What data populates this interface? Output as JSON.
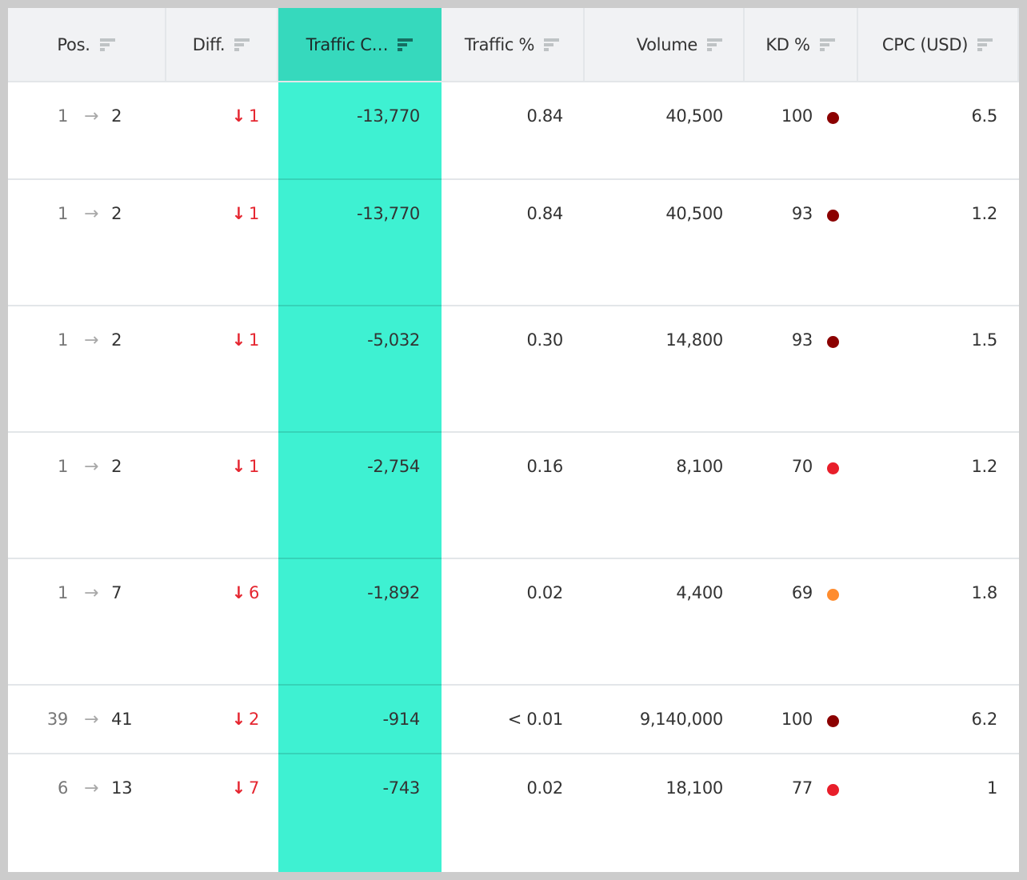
{
  "table": {
    "columns": [
      {
        "label": "Pos.",
        "sort_icon": "sort-icon",
        "active": false
      },
      {
        "label": "Diff.",
        "sort_icon": "sort-icon",
        "active": false
      },
      {
        "label": "Traffic C…",
        "sort_icon": "sort-icon",
        "active": true
      },
      {
        "label": "Traffic %",
        "sort_icon": "sort-icon",
        "active": false
      },
      {
        "label": "Volume",
        "sort_icon": "sort-icon",
        "active": false
      },
      {
        "label": "KD %",
        "sort_icon": "sort-icon",
        "active": false
      },
      {
        "label": "CPC (USD)",
        "sort_icon": "sort-icon",
        "active": false
      }
    ],
    "rows": [
      {
        "pos_from": "1",
        "pos_to": "2",
        "diff_icon": "arrow-down-icon",
        "diff": "1",
        "traffic_change": "-13,770",
        "traffic_pct": "0.84",
        "volume": "40,500",
        "kd": "100",
        "kd_color": "#8b0000",
        "cpc": "6.5"
      },
      {
        "pos_from": "1",
        "pos_to": "2",
        "diff_icon": "arrow-down-icon",
        "diff": "1",
        "traffic_change": "-13,770",
        "traffic_pct": "0.84",
        "volume": "40,500",
        "kd": "93",
        "kd_color": "#8b0000",
        "cpc": "1.2"
      },
      {
        "pos_from": "1",
        "pos_to": "2",
        "diff_icon": "arrow-down-icon",
        "diff": "1",
        "traffic_change": "-5,032",
        "traffic_pct": "0.30",
        "volume": "14,800",
        "kd": "93",
        "kd_color": "#8b0000",
        "cpc": "1.5"
      },
      {
        "pos_from": "1",
        "pos_to": "2",
        "diff_icon": "arrow-down-icon",
        "diff": "1",
        "traffic_change": "-2,754",
        "traffic_pct": "0.16",
        "volume": "8,100",
        "kd": "70",
        "kd_color": "#e81e2a",
        "cpc": "1.2"
      },
      {
        "pos_from": "1",
        "pos_to": "7",
        "diff_icon": "arrow-down-icon",
        "diff": "6",
        "traffic_change": "-1,892",
        "traffic_pct": "0.02",
        "volume": "4,400",
        "kd": "69",
        "kd_color": "#ff8c2e",
        "cpc": "1.8"
      },
      {
        "pos_from": "39",
        "pos_to": "41",
        "diff_icon": "arrow-down-icon",
        "diff": "2",
        "traffic_change": "-914",
        "traffic_pct": "< 0.01",
        "volume": "9,140,000",
        "kd": "100",
        "kd_color": "#8b0000",
        "cpc": "6.2"
      },
      {
        "pos_from": "6",
        "pos_to": "13",
        "diff_icon": "arrow-down-icon",
        "diff": "7",
        "traffic_change": "-743",
        "traffic_pct": "0.02",
        "volume": "18,100",
        "kd": "77",
        "kd_color": "#e81e2a",
        "cpc": "1"
      }
    ]
  },
  "glyphs": {
    "pos_arrow": "→",
    "diff_arrow": "↓"
  },
  "colors": {
    "accent_header": "#36d9bd",
    "accent_column": "#3ef1d2",
    "negative": "#e52630"
  }
}
